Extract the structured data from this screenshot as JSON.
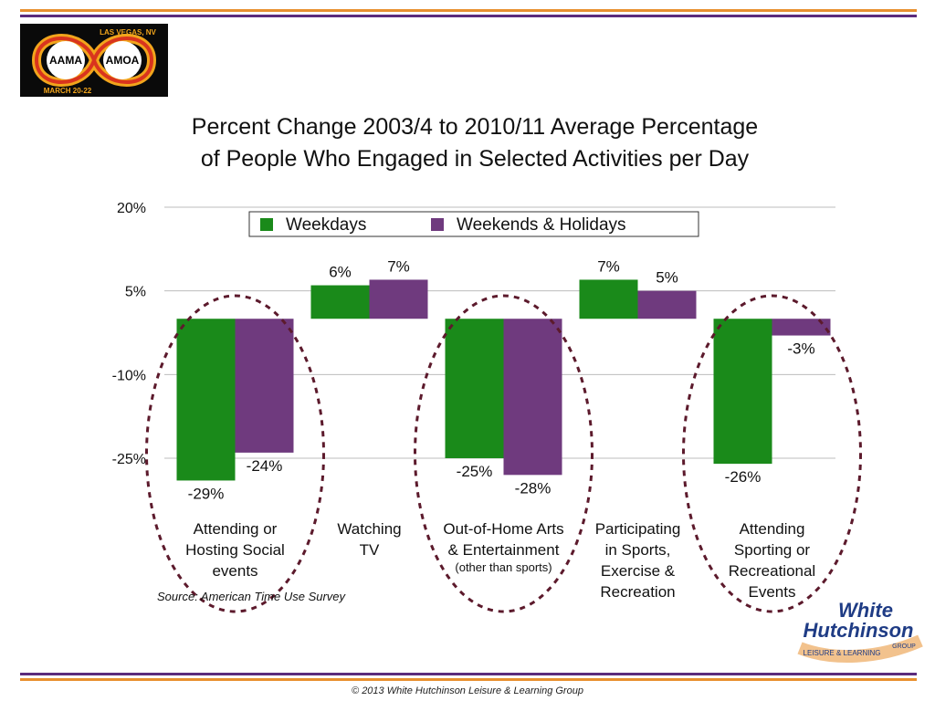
{
  "header": {
    "logo_texts": [
      "AAMA",
      "AMOA",
      "LAS VEGAS, NV",
      "MARCH 20-22"
    ]
  },
  "chart_data": {
    "type": "bar",
    "title_lines": [
      "Percent Change 2003/4 to 2010/11 Average Percentage",
      "of People Who Engaged in Selected Activities per Day"
    ],
    "categories": [
      [
        "Attending or",
        "Hosting Social",
        "events"
      ],
      [
        "Watching",
        "TV"
      ],
      [
        "Out-of-Home Arts",
        "& Entertainment",
        "(other than sports)"
      ],
      [
        "Participating",
        "in Sports,",
        "Exercise &",
        "Recreation"
      ],
      [
        "Attending",
        "Sporting or",
        "Recreational",
        "Events"
      ]
    ],
    "series": [
      {
        "name": "Weekdays",
        "color": "#1a8a1a",
        "values": [
          -29,
          6,
          -25,
          7,
          -26
        ],
        "labels": [
          "-29%",
          "6%",
          "-25%",
          "7%",
          "-26%"
        ]
      },
      {
        "name": "Weekends & Holidays",
        "color": "#6f3a7e",
        "values": [
          -24,
          7,
          -28,
          5,
          -3
        ],
        "labels": [
          "-24%",
          "7%",
          "-28%",
          "5%",
          "-3%"
        ]
      }
    ],
    "y_ticks": [
      20,
      5,
      -10,
      -25
    ],
    "y_tick_labels": [
      "20%",
      "5%",
      "-10%",
      "-25%"
    ],
    "ylim": [
      -30,
      20
    ],
    "grid": true,
    "legend_position": "top-center",
    "highlighted_categories": [
      0,
      2,
      4
    ]
  },
  "source": "Source: American Time Use Survey",
  "brand": {
    "line1": "White",
    "line2": "Hutchinson",
    "tagline": "LEISURE & LEARNING",
    "tagline2": "GROUP"
  },
  "footer": {
    "copyright": "© 2013 White Hutchinson Leisure & Learning Group"
  }
}
